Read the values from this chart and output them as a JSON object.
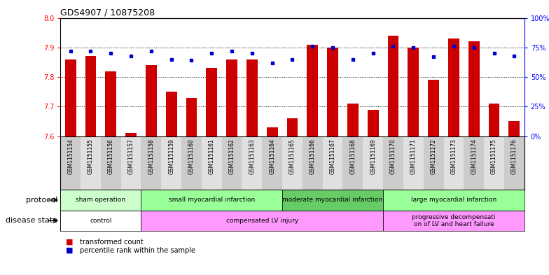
{
  "title": "GDS4907 / 10875208",
  "samples": [
    "GSM1151154",
    "GSM1151155",
    "GSM1151156",
    "GSM1151157",
    "GSM1151158",
    "GSM1151159",
    "GSM1151160",
    "GSM1151161",
    "GSM1151162",
    "GSM1151163",
    "GSM1151164",
    "GSM1151165",
    "GSM1151166",
    "GSM1151167",
    "GSM1151168",
    "GSM1151169",
    "GSM1151170",
    "GSM1151171",
    "GSM1151172",
    "GSM1151173",
    "GSM1151174",
    "GSM1151175",
    "GSM1151176"
  ],
  "transformed_count": [
    7.86,
    7.87,
    7.82,
    7.61,
    7.84,
    7.75,
    7.73,
    7.83,
    7.86,
    7.86,
    7.63,
    7.66,
    7.91,
    7.9,
    7.71,
    7.69,
    7.94,
    7.9,
    7.79,
    7.93,
    7.92,
    7.71,
    7.65
  ],
  "percentile_rank": [
    72,
    72,
    70,
    68,
    72,
    65,
    64,
    70,
    72,
    70,
    62,
    65,
    76,
    75,
    65,
    70,
    76,
    75,
    67,
    76,
    75,
    70,
    68
  ],
  "ylim_left": [
    7.6,
    8.0
  ],
  "ylim_right": [
    0,
    100
  ],
  "yticks_left": [
    7.6,
    7.7,
    7.8,
    7.9,
    8.0
  ],
  "yticks_right": [
    0,
    25,
    50,
    75,
    100
  ],
  "ytick_labels_right": [
    "0%",
    "25%",
    "50%",
    "75%",
    "100%"
  ],
  "bar_color": "#cc0000",
  "dot_color": "#0000cc",
  "protocol_groups": [
    {
      "label": "sham operation",
      "start": 0,
      "end": 4,
      "color": "#ccffcc"
    },
    {
      "label": "small myocardial infarction",
      "start": 4,
      "end": 11,
      "color": "#99ff99"
    },
    {
      "label": "moderate myocardial infarction",
      "start": 11,
      "end": 16,
      "color": "#66cc66"
    },
    {
      "label": "large myocardial infarction",
      "start": 16,
      "end": 23,
      "color": "#99ff99"
    }
  ],
  "disease_groups": [
    {
      "label": "control",
      "start": 0,
      "end": 4,
      "color": "#ffffff"
    },
    {
      "label": "compensated LV injury",
      "start": 4,
      "end": 16,
      "color": "#ff99ff"
    },
    {
      "label": "progressive decompensati\non of LV and heart failure",
      "start": 16,
      "end": 23,
      "color": "#ff99ff"
    }
  ],
  "legend_items": [
    {
      "label": "transformed count",
      "color": "#cc0000"
    },
    {
      "label": "percentile rank within the sample",
      "color": "#0000cc"
    }
  ]
}
